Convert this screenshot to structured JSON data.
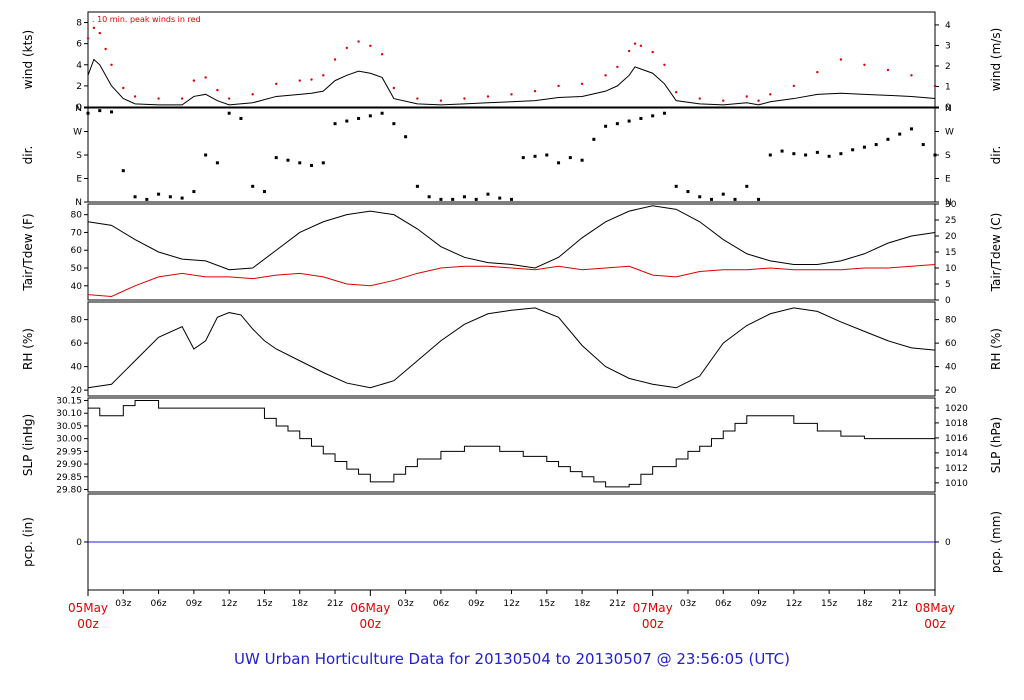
{
  "chart_data": {
    "type": "line",
    "footer": "UW Urban Horticulture Data for 20130504  to  20130507 @ 23:56:05  (UTC)",
    "x_axis": {
      "range_hours": [
        0,
        72
      ],
      "hour_ticks": [
        {
          "h": 3,
          "label": "03z"
        },
        {
          "h": 6,
          "label": "06z"
        },
        {
          "h": 9,
          "label": "09z"
        },
        {
          "h": 12,
          "label": "12z"
        },
        {
          "h": 15,
          "label": "15z"
        },
        {
          "h": 18,
          "label": "18z"
        },
        {
          "h": 21,
          "label": "21z"
        },
        {
          "h": 27,
          "label": "03z"
        },
        {
          "h": 30,
          "label": "06z"
        },
        {
          "h": 33,
          "label": "09z"
        },
        {
          "h": 36,
          "label": "12z"
        },
        {
          "h": 39,
          "label": "15z"
        },
        {
          "h": 42,
          "label": "18z"
        },
        {
          "h": 45,
          "label": "21z"
        },
        {
          "h": 51,
          "label": "03z"
        },
        {
          "h": 54,
          "label": "06z"
        },
        {
          "h": 57,
          "label": "09z"
        },
        {
          "h": 60,
          "label": "12z"
        },
        {
          "h": 63,
          "label": "15z"
        },
        {
          "h": 66,
          "label": "18z"
        },
        {
          "h": 69,
          "label": "21z"
        }
      ],
      "day_labels": [
        {
          "h": 0,
          "date": "05May",
          "time": "00z"
        },
        {
          "h": 24,
          "date": "06May",
          "time": "00z"
        },
        {
          "h": 48,
          "date": "07May",
          "time": "00z"
        },
        {
          "h": 72,
          "date": "08May",
          "time": "00z"
        }
      ]
    },
    "panels": [
      {
        "id": "wind",
        "left_label": "wind (kts)",
        "right_label": "wind (m/s)",
        "left_range": [
          0,
          9
        ],
        "left_ticks": [
          "0",
          "2",
          "4",
          "6",
          "8"
        ],
        "right_ticks": [
          "0",
          "1",
          "2",
          "3",
          "4"
        ],
        "right_tick_values": [
          0,
          1.944,
          3.888,
          5.832,
          7.776
        ],
        "annotation": ". 10 min. peak winds in red",
        "series": [
          {
            "name": "wind speed",
            "color": "#000000",
            "x": [
              0,
              0.5,
              1,
              1.5,
              2,
              3,
              4,
              6,
              8,
              9,
              10,
              11,
              12,
              14,
              16,
              18,
              19,
              20,
              21,
              22,
              23,
              24,
              25,
              26,
              28,
              30,
              32,
              34,
              36,
              38,
              40,
              42,
              44,
              45,
              46,
              46.5,
              47,
              48,
              49,
              50,
              52,
              54,
              56,
              57,
              58,
              60,
              62,
              64,
              66,
              68,
              70,
              72
            ],
            "y": [
              3,
              4.5,
              4,
              3,
              2,
              0.8,
              0.3,
              0.2,
              0.2,
              1,
              1.2,
              0.6,
              0.2,
              0.4,
              1,
              1.2,
              1.3,
              1.5,
              2.5,
              3,
              3.4,
              3.2,
              2.8,
              0.8,
              0.3,
              0.2,
              0.3,
              0.4,
              0.5,
              0.6,
              0.9,
              1,
              1.5,
              2,
              3,
              3.8,
              3.6,
              3.2,
              2.2,
              0.6,
              0.3,
              0.2,
              0.4,
              0.2,
              0.5,
              0.8,
              1.2,
              1.3,
              1.2,
              1.1,
              1,
              0.8
            ]
          },
          {
            "name": "peak",
            "color": "#e00000",
            "x": [
              0,
              0.5,
              1,
              1.5,
              2,
              3,
              4,
              6,
              8,
              9,
              10,
              11,
              12,
              14,
              16,
              18,
              19,
              20,
              21,
              22,
              23,
              24,
              25,
              26,
              28,
              30,
              32,
              34,
              36,
              38,
              40,
              42,
              44,
              45,
              46,
              46.5,
              47,
              48,
              49,
              50,
              52,
              54,
              56,
              57,
              58,
              60,
              62,
              64,
              66,
              68,
              70,
              72
            ],
            "y": [
              6.5,
              7.5,
              7,
              5.5,
              4,
              1.8,
              1,
              0.8,
              0.8,
              2.5,
              2.8,
              1.6,
              0.8,
              1.2,
              2.2,
              2.5,
              2.6,
              3,
              4.5,
              5.6,
              6.2,
              5.8,
              5,
              1.8,
              0.8,
              0.6,
              0.8,
              1,
              1.2,
              1.5,
              2,
              2.2,
              3,
              3.8,
              5.3,
              6,
              5.8,
              5.2,
              4,
              1.4,
              0.8,
              0.6,
              1,
              0.6,
              1.2,
              2,
              3.3,
              4.5,
              4,
              3.5,
              3,
              2
            ]
          }
        ]
      },
      {
        "id": "dir",
        "left_label": "dir.",
        "right_label": "dir.",
        "left_range": [
          0,
          360
        ],
        "left_ticks": [
          "N",
          "E",
          "S",
          "W",
          "N"
        ],
        "left_tick_values": [
          0,
          90,
          180,
          270,
          360
        ],
        "right_ticks": [
          "N",
          "E",
          "S",
          "W",
          "N"
        ],
        "right_tick_values": [
          0,
          90,
          180,
          270,
          360
        ],
        "series": [
          {
            "name": "direction",
            "color": "#000000",
            "x": [
              0,
              1,
              2,
              3,
              4,
              5,
              6,
              7,
              8,
              9,
              10,
              11,
              12,
              13,
              14,
              15,
              16,
              17,
              18,
              19,
              20,
              21,
              22,
              23,
              24,
              25,
              26,
              27,
              28,
              29,
              30,
              31,
              32,
              33,
              34,
              35,
              36,
              37,
              38,
              39,
              40,
              41,
              42,
              43,
              44,
              45,
              46,
              47,
              48,
              49,
              50,
              51,
              52,
              53,
              54,
              55,
              56,
              57,
              58,
              59,
              60,
              61,
              62,
              63,
              64,
              65,
              66,
              67,
              68,
              69,
              70,
              71,
              72
            ],
            "y": [
              340,
              350,
              345,
              120,
              20,
              10,
              30,
              20,
              15,
              40,
              180,
              150,
              340,
              320,
              60,
              40,
              170,
              160,
              150,
              140,
              150,
              300,
              310,
              320,
              330,
              340,
              300,
              250,
              60,
              20,
              10,
              10,
              20,
              10,
              30,
              15,
              10,
              170,
              175,
              180,
              150,
              170,
              160,
              240,
              290,
              300,
              310,
              320,
              330,
              340,
              60,
              40,
              20,
              10,
              30,
              10,
              60,
              10,
              180,
              195,
              185,
              180,
              190,
              175,
              185,
              200,
              210,
              220,
              240,
              260,
              280,
              220,
              180
            ]
          }
        ]
      },
      {
        "id": "temp",
        "left_label": "Tair/Tdew (F)",
        "right_label": "Tair/Tdew (C)",
        "left_range": [
          32,
          86
        ],
        "left_ticks": [
          "40",
          "50",
          "60",
          "70",
          "80"
        ],
        "left_tick_values": [
          40,
          50,
          60,
          70,
          80
        ],
        "right_ticks": [
          "0",
          "5",
          "10",
          "15",
          "20",
          "25",
          "30"
        ],
        "right_tick_values": [
          32,
          41,
          50,
          59,
          68,
          77,
          86
        ],
        "series": [
          {
            "name": "Tair",
            "color": "#000000",
            "x": [
              0,
              2,
              4,
              6,
              8,
              10,
              12,
              14,
              16,
              18,
              20,
              22,
              24,
              26,
              28,
              30,
              32,
              34,
              36,
              38,
              40,
              42,
              44,
              46,
              48,
              50,
              52,
              54,
              56,
              58,
              60,
              62,
              64,
              66,
              68,
              70,
              72
            ],
            "y": [
              76,
              74,
              66,
              59,
              55,
              54,
              49,
              50,
              60,
              70,
              76,
              80,
              82,
              80,
              72,
              62,
              56,
              53,
              52,
              50,
              56,
              67,
              76,
              82,
              85,
              83,
              76,
              66,
              58,
              54,
              52,
              52,
              54,
              58,
              64,
              68,
              70
            ]
          },
          {
            "name": "Tdew",
            "color": "#e00000",
            "x": [
              0,
              2,
              4,
              6,
              8,
              10,
              12,
              14,
              16,
              18,
              20,
              22,
              24,
              26,
              28,
              30,
              32,
              34,
              36,
              38,
              40,
              42,
              44,
              46,
              48,
              50,
              52,
              54,
              56,
              58,
              60,
              62,
              64,
              66,
              68,
              70,
              72
            ],
            "y": [
              35,
              34,
              40,
              45,
              47,
              45,
              45,
              44,
              46,
              47,
              45,
              41,
              40,
              43,
              47,
              50,
              51,
              51,
              50,
              49,
              51,
              49,
              50,
              51,
              46,
              45,
              48,
              49,
              49,
              50,
              49,
              49,
              49,
              50,
              50,
              51,
              52
            ]
          }
        ]
      },
      {
        "id": "rh",
        "left_label": "RH (%)",
        "right_label": "RH (%)",
        "left_range": [
          15,
          95
        ],
        "left_ticks": [
          "20",
          "40",
          "60",
          "80"
        ],
        "left_tick_values": [
          20,
          40,
          60,
          80
        ],
        "right_ticks": [
          "20",
          "40",
          "60",
          "80"
        ],
        "right_tick_values": [
          20,
          40,
          60,
          80
        ],
        "series": [
          {
            "name": "RH",
            "color": "#000000",
            "x": [
              0,
              2,
              4,
              6,
              8,
              9,
              10,
              11,
              12,
              13,
              14,
              15,
              16,
              18,
              20,
              22,
              24,
              26,
              28,
              30,
              32,
              34,
              36,
              38,
              40,
              42,
              44,
              46,
              48,
              50,
              52,
              54,
              56,
              58,
              60,
              62,
              64,
              66,
              68,
              70,
              72
            ],
            "y": [
              22,
              25,
              45,
              65,
              74,
              55,
              62,
              82,
              86,
              84,
              72,
              62,
              55,
              45,
              35,
              26,
              22,
              28,
              45,
              62,
              76,
              85,
              88,
              90,
              82,
              58,
              40,
              30,
              25,
              22,
              32,
              60,
              75,
              85,
              90,
              87,
              78,
              70,
              62,
              56,
              54
            ]
          }
        ]
      },
      {
        "id": "slp",
        "left_label": "SLP (inHg)",
        "right_label": "SLP (hPa)",
        "left_range": [
          29.79,
          30.16
        ],
        "left_ticks": [
          "29.80",
          "29.85",
          "29.90",
          "29.95",
          "30.00",
          "30.05",
          "30.10",
          "30.15"
        ],
        "left_tick_values": [
          29.8,
          29.85,
          29.9,
          29.95,
          30.0,
          30.05,
          30.1,
          30.15
        ],
        "right_ticks": [
          "1010",
          "1012",
          "1014",
          "1016",
          "1018",
          "1020"
        ],
        "right_tick_values": [
          29.826,
          29.885,
          29.944,
          30.003,
          30.062,
          30.121
        ],
        "series": [
          {
            "name": "SLP",
            "color": "#000000",
            "step": true,
            "x": [
              0,
              1,
              3,
              4,
              6,
              8,
              14,
              15,
              16,
              17,
              18,
              19,
              20,
              21,
              22,
              23,
              24,
              26,
              27,
              28,
              30,
              32,
              35,
              37,
              39,
              40,
              41,
              42,
              43,
              44,
              45,
              46,
              47,
              48,
              50,
              51,
              52,
              53,
              54,
              55,
              56,
              58,
              60,
              62,
              64,
              66,
              68,
              70,
              72
            ],
            "y": [
              30.12,
              30.09,
              30.13,
              30.15,
              30.12,
              30.12,
              30.12,
              30.08,
              30.05,
              30.03,
              30.0,
              29.97,
              29.94,
              29.91,
              29.88,
              29.86,
              29.83,
              29.86,
              29.89,
              29.92,
              29.95,
              29.97,
              29.95,
              29.93,
              29.91,
              29.89,
              29.87,
              29.85,
              29.83,
              29.81,
              29.81,
              29.82,
              29.86,
              29.89,
              29.92,
              29.95,
              29.97,
              30.0,
              30.03,
              30.06,
              30.09,
              30.09,
              30.06,
              30.03,
              30.01,
              30.0,
              30.0,
              30.0,
              30.0
            ]
          }
        ]
      },
      {
        "id": "pcp",
        "left_label": "pcp. (in)",
        "right_label": "pcp. (mm)",
        "left_range": [
          -1,
          1
        ],
        "left_ticks": [
          "0"
        ],
        "left_tick_values": [
          0
        ],
        "right_ticks": [
          "0"
        ],
        "right_tick_values": [
          0
        ],
        "series": [
          {
            "name": "precip",
            "color": "#2020d0",
            "x": [
              0,
              72
            ],
            "y": [
              0,
              0
            ]
          }
        ]
      }
    ]
  }
}
